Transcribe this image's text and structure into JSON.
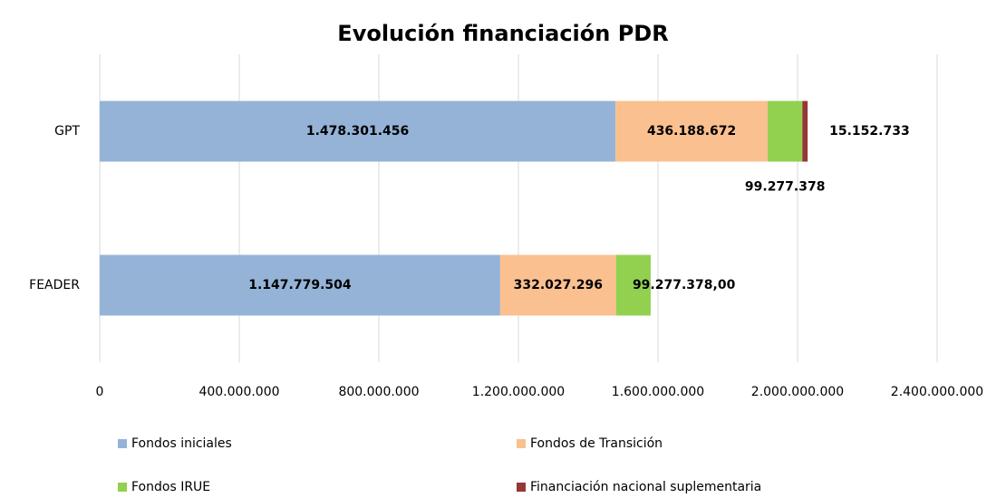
{
  "chart_data": {
    "type": "bar",
    "orientation": "horizontal",
    "stacked": true,
    "title": "Evolución financiación PDR",
    "categories": [
      "GPT",
      "FEADER"
    ],
    "series": [
      {
        "name": "Fondos iniciales",
        "color": "#95b3d7",
        "values": [
          1478301456,
          1147779504
        ],
        "value_labels": [
          "1.478.301.456",
          "1.147.779.504"
        ]
      },
      {
        "name": "Fondos de Transición",
        "color": "#fac090",
        "values": [
          436188672,
          332027296
        ],
        "value_labels": [
          "436.188.672",
          "332.027.296"
        ]
      },
      {
        "name": "Fondos IRUE",
        "color": "#92d050",
        "values": [
          99277378,
          99277378
        ],
        "value_labels": [
          "99.277.378",
          "99.277.378,00"
        ]
      },
      {
        "name": "Financiación nacional suplementaria",
        "color": "#953735",
        "values": [
          15152733,
          null
        ],
        "value_labels": [
          "15.152.733",
          null
        ]
      }
    ],
    "xlim": [
      0,
      2400000000
    ],
    "xticks": [
      0,
      {
        "value": 400000000,
        "label": "400.000.000"
      },
      {
        "value": 800000000,
        "label": "800.000.000"
      },
      {
        "value": 1200000000,
        "label": "1.200.000.000"
      },
      {
        "value": 1600000000,
        "label": "1.600.000.000"
      },
      {
        "value": 2000000000,
        "label": "2.000.000.000"
      },
      {
        "value": 2400000000,
        "label": "2.400.000.000"
      }
    ],
    "grid": true,
    "legend": "bottom"
  }
}
